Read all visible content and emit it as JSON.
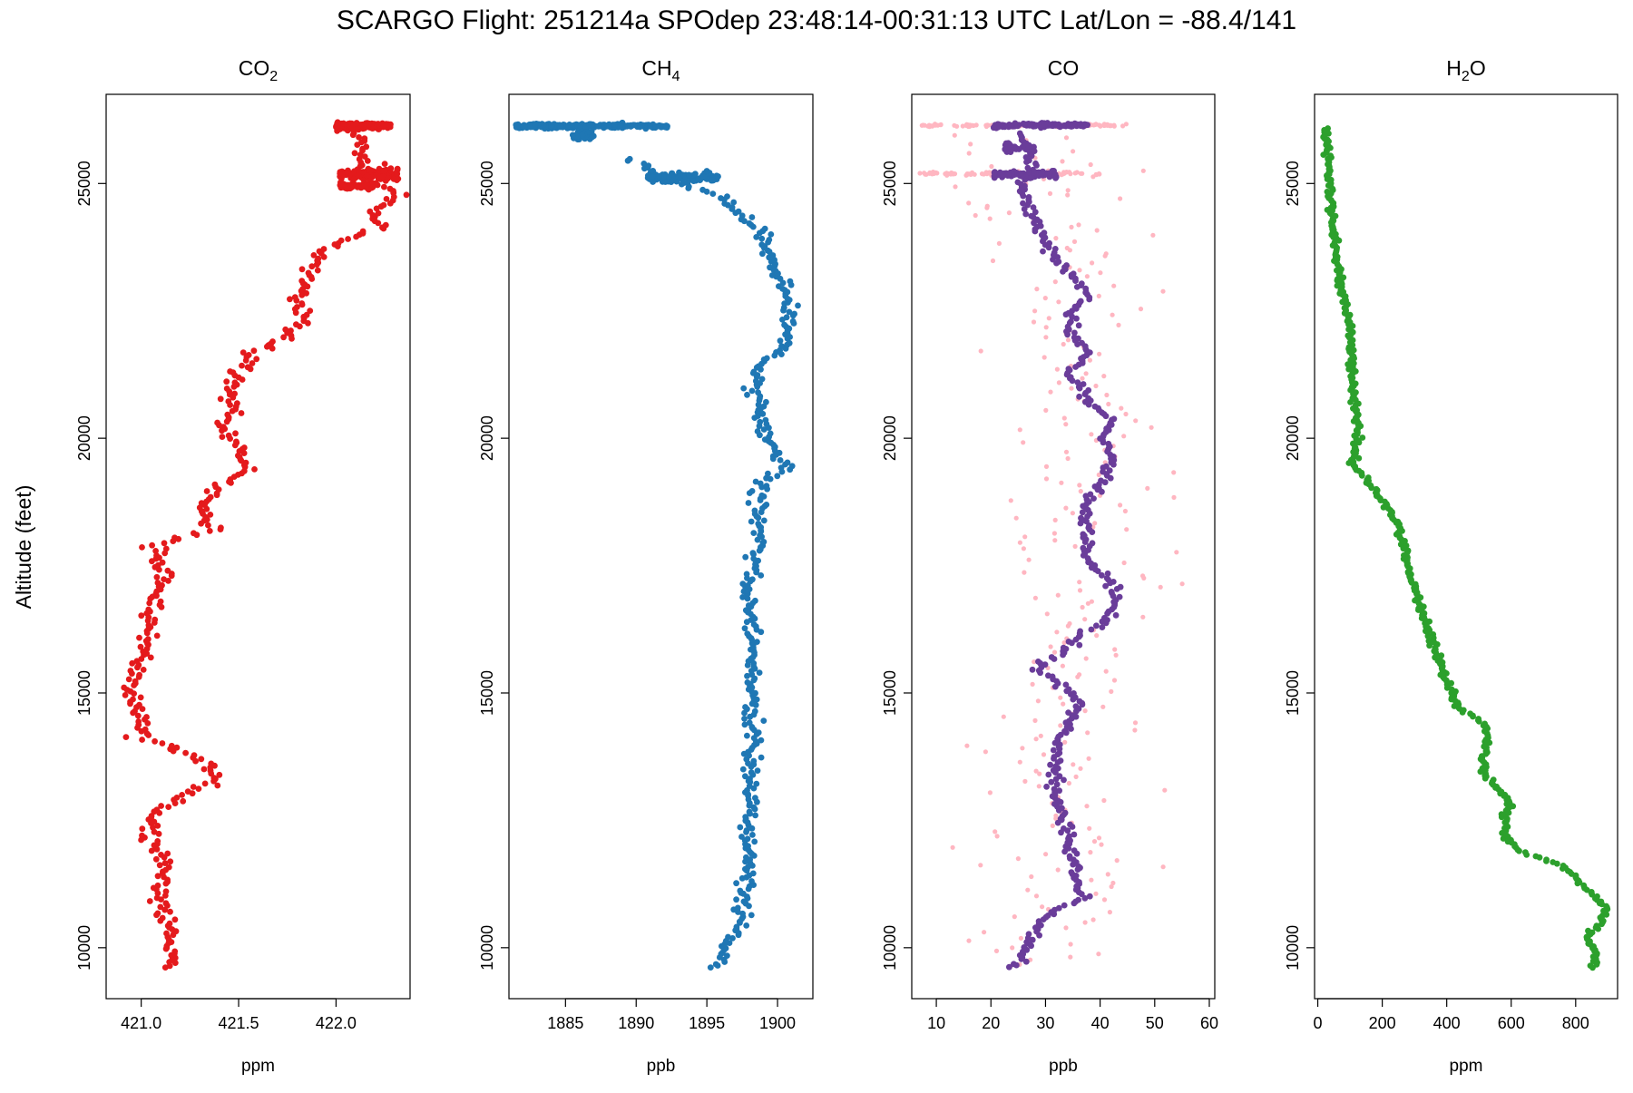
{
  "figure": {
    "title": "SCARGO Flight: 251214a  SPOdep  23:48:14-00:31:13 UTC  Lat/Lon = -88.4/141",
    "ylabel": "Altitude (feet)"
  },
  "chart_data": [
    {
      "type": "scatter",
      "title_main": "CO",
      "title_sub": "2",
      "title_tail": "",
      "xlabel": "ppm",
      "xlim": [
        420.82,
        422.38
      ],
      "ylim": [
        9000,
        26750
      ],
      "xticks": [
        421.0,
        421.5,
        422.0
      ],
      "xtick_labels": [
        "421.0",
        "421.5",
        "422.0"
      ],
      "yticks": [
        10000,
        15000,
        20000,
        25000
      ],
      "ytick_labels": [
        "10000",
        "15000",
        "20000",
        "25000"
      ],
      "color": "#e41a1c",
      "series": [
        {
          "profile": [
            [
              9600,
              421.18
            ],
            [
              10200,
              421.16
            ],
            [
              10600,
              421.12
            ],
            [
              11000,
              421.08
            ],
            [
              11400,
              421.14
            ],
            [
              11800,
              421.1
            ],
            [
              12200,
              421.04
            ],
            [
              12600,
              421.06
            ],
            [
              13000,
              421.22
            ],
            [
              13300,
              421.38
            ],
            [
              13700,
              421.3
            ],
            [
              14100,
              421.02
            ],
            [
              14500,
              421.0
            ],
            [
              14900,
              420.95
            ],
            [
              15400,
              420.97
            ],
            [
              15900,
              421.03
            ],
            [
              16400,
              421.04
            ],
            [
              16900,
              421.06
            ],
            [
              17200,
              421.12
            ],
            [
              17600,
              421.1
            ],
            [
              17900,
              421.05
            ],
            [
              18200,
              421.38
            ],
            [
              18600,
              421.28
            ],
            [
              19000,
              421.38
            ],
            [
              19400,
              421.55
            ],
            [
              19800,
              421.5
            ],
            [
              20200,
              421.43
            ],
            [
              20600,
              421.47
            ],
            [
              21000,
              421.45
            ],
            [
              21400,
              421.52
            ],
            [
              21700,
              421.6
            ],
            [
              22000,
              421.75
            ],
            [
              22300,
              421.82
            ],
            [
              22700,
              421.8
            ],
            [
              23100,
              421.85
            ],
            [
              23500,
              421.88
            ],
            [
              23800,
              421.98
            ],
            [
              24100,
              422.2
            ],
            [
              24400,
              422.18
            ],
            [
              24700,
              422.3
            ],
            [
              25100,
              422.25
            ],
            [
              25500,
              422.1
            ],
            [
              25800,
              422.15
            ],
            [
              26100,
              422.1
            ]
          ],
          "jitter": 0.025,
          "count": 420
        },
        {
          "blobs": [
            {
              "y": 26130,
              "x_from": 422.0,
              "x_to": 422.28,
              "n": 160,
              "yspread": 60
            },
            {
              "y": 25180,
              "x_from": 422.02,
              "x_to": 422.32,
              "n": 130,
              "yspread": 110
            },
            {
              "y": 24950,
              "x_from": 422.02,
              "x_to": 422.2,
              "n": 60,
              "yspread": 60
            }
          ]
        }
      ]
    },
    {
      "type": "scatter",
      "title_main": "CH",
      "title_sub": "4",
      "title_tail": "",
      "xlabel": "ppb",
      "xlim": [
        1881.0,
        1902.5
      ],
      "ylim": [
        9000,
        26750
      ],
      "xticks": [
        1885,
        1890,
        1895,
        1900
      ],
      "xtick_labels": [
        "1885",
        "1890",
        "1895",
        "1900"
      ],
      "yticks": [
        10000,
        15000,
        20000,
        25000
      ],
      "ytick_labels": [
        "10000",
        "15000",
        "20000",
        "25000"
      ],
      "color": "#1f77b4",
      "series": [
        {
          "profile": [
            [
              9600,
              1895.8
            ],
            [
              10000,
              1896.2
            ],
            [
              10400,
              1897.3
            ],
            [
              10800,
              1897.5
            ],
            [
              11200,
              1897.8
            ],
            [
              11600,
              1897.8
            ],
            [
              12000,
              1897.9
            ],
            [
              12600,
              1898.0
            ],
            [
              13300,
              1898.2
            ],
            [
              14000,
              1898.3
            ],
            [
              14800,
              1898.1
            ],
            [
              15500,
              1898.2
            ],
            [
              16300,
              1898.3
            ],
            [
              17000,
              1898.0
            ],
            [
              17600,
              1898.3
            ],
            [
              18200,
              1898.8
            ],
            [
              18700,
              1898.6
            ],
            [
              19100,
              1898.8
            ],
            [
              19400,
              1900.6
            ],
            [
              19800,
              1899.8
            ],
            [
              20200,
              1898.8
            ],
            [
              20800,
              1898.6
            ],
            [
              21400,
              1898.5
            ],
            [
              21800,
              1900.6
            ],
            [
              22300,
              1900.9
            ],
            [
              22800,
              1900.7
            ],
            [
              23200,
              1900.0
            ],
            [
              23500,
              1899.4
            ],
            [
              23900,
              1899.3
            ],
            [
              24200,
              1898.2
            ],
            [
              24500,
              1897.0
            ],
            [
              24800,
              1895.7
            ],
            [
              25000,
              1893.0
            ],
            [
              25200,
              1891.2
            ],
            [
              25500,
              1889.5
            ]
          ],
          "jitter": 0.3,
          "count": 420
        },
        {
          "blobs": [
            {
              "y": 26130,
              "x_from": 1881.5,
              "x_to": 1892.2,
              "n": 280,
              "yspread": 45
            },
            {
              "y": 25950,
              "x_from": 1885.5,
              "x_to": 1887.0,
              "n": 30,
              "yspread": 80
            },
            {
              "y": 25120,
              "x_from": 1890.8,
              "x_to": 1895.8,
              "n": 120,
              "yspread": 90
            }
          ]
        }
      ]
    },
    {
      "type": "scatter",
      "title_main": "CO",
      "title_sub": "",
      "title_tail": "",
      "xlabel": "ppb",
      "xlim": [
        5.5,
        61.0
      ],
      "ylim": [
        9000,
        26750
      ],
      "xticks": [
        10,
        20,
        30,
        40,
        50,
        60
      ],
      "xtick_labels": [
        "10",
        "20",
        "30",
        "40",
        "50",
        "60"
      ],
      "yticks": [
        10000,
        15000,
        20000,
        25000
      ],
      "ytick_labels": [
        "10000",
        "15000",
        "20000",
        "25000"
      ],
      "color": "#6a3d9a",
      "color_secondary": "#ffb6c1",
      "series": [
        {
          "role": "raw",
          "profile": [
            [
              9600,
              24.5
            ],
            [
              10300,
              27.0
            ],
            [
              11000,
              35.0
            ],
            [
              11800,
              34.0
            ],
            [
              12500,
              33.0
            ],
            [
              13300,
              31.5
            ],
            [
              14100,
              33.5
            ],
            [
              14800,
              35.0
            ],
            [
              15500,
              28.0
            ],
            [
              16200,
              37.0
            ],
            [
              16900,
              41.0
            ],
            [
              17500,
              38.0
            ],
            [
              18300,
              36.0
            ],
            [
              19000,
              40.0
            ],
            [
              19800,
              41.0
            ],
            [
              20500,
              40.0
            ],
            [
              21100,
              34.0
            ],
            [
              21700,
              37.0
            ],
            [
              22300,
              35.0
            ],
            [
              23000,
              36.0
            ],
            [
              23700,
              31.0
            ],
            [
              24300,
              28.0
            ],
            [
              24800,
              27.0
            ],
            [
              25500,
              27.0
            ],
            [
              26000,
              24.0
            ]
          ],
          "jitter": 7.5,
          "count": 260
        },
        {
          "role": "raw",
          "blobs": [
            {
              "y": 26140,
              "x_from": 7.0,
              "x_to": 45.0,
              "n": 120,
              "yspread": 25
            },
            {
              "y": 25200,
              "x_from": 7.0,
              "x_to": 40.0,
              "n": 90,
              "yspread": 40
            }
          ]
        },
        {
          "role": "smoothed",
          "profile": [
            [
              9600,
              24.5
            ],
            [
              10000,
              26.5
            ],
            [
              10300,
              28.0
            ],
            [
              10600,
              30.0
            ],
            [
              11000,
              37.0
            ],
            [
              11400,
              35.5
            ],
            [
              11800,
              35.0
            ],
            [
              12200,
              34.5
            ],
            [
              12600,
              33.0
            ],
            [
              13000,
              32.0
            ],
            [
              13500,
              31.5
            ],
            [
              14000,
              32.5
            ],
            [
              14500,
              35.0
            ],
            [
              14800,
              36.0
            ],
            [
              15200,
              32.0
            ],
            [
              15500,
              28.5
            ],
            [
              15800,
              33.0
            ],
            [
              16200,
              37.0
            ],
            [
              16500,
              42.0
            ],
            [
              16900,
              43.0
            ],
            [
              17300,
              41.5
            ],
            [
              17600,
              37.0
            ],
            [
              18000,
              37.5
            ],
            [
              18400,
              37.0
            ],
            [
              18800,
              38.0
            ],
            [
              19200,
              40.5
            ],
            [
              19600,
              42.5
            ],
            [
              20000,
              40.5
            ],
            [
              20300,
              42.0
            ],
            [
              20600,
              39.0
            ],
            [
              21000,
              36.5
            ],
            [
              21300,
              33.5
            ],
            [
              21600,
              38.5
            ],
            [
              22000,
              35.0
            ],
            [
              22400,
              34.0
            ],
            [
              22800,
              38.0
            ],
            [
              23100,
              36.0
            ],
            [
              23400,
              33.0
            ],
            [
              23700,
              31.0
            ],
            [
              24000,
              29.0
            ],
            [
              24300,
              28.0
            ],
            [
              24600,
              26.0
            ],
            [
              24900,
              26.0
            ],
            [
              25300,
              27.0
            ],
            [
              25700,
              27.0
            ],
            [
              26000,
              25.0
            ]
          ],
          "jitter": 0.6,
          "count": 420
        },
        {
          "role": "smoothed",
          "blobs": [
            {
              "y": 26140,
              "x_from": 20.5,
              "x_to": 38.0,
              "n": 110,
              "yspread": 35
            },
            {
              "y": 25180,
              "x_from": 20.5,
              "x_to": 32.0,
              "n": 110,
              "yspread": 60
            },
            {
              "y": 25700,
              "x_from": 22.5,
              "x_to": 28.0,
              "n": 40,
              "yspread": 80
            }
          ]
        }
      ]
    },
    {
      "type": "scatter",
      "title_main": "H",
      "title_sub": "2",
      "title_tail": "O",
      "xlabel": "ppm",
      "xlim": [
        -10,
        930
      ],
      "ylim": [
        9000,
        26750
      ],
      "xticks": [
        0,
        200,
        400,
        600,
        800
      ],
      "xtick_labels": [
        "0",
        "200",
        "400",
        "600",
        "800"
      ],
      "yticks": [
        10000,
        15000,
        20000,
        25000
      ],
      "ytick_labels": [
        "10000",
        "15000",
        "20000",
        "25000"
      ],
      "color": "#2ca02c",
      "series": [
        {
          "profile": [
            [
              9600,
              860
            ],
            [
              9900,
              860
            ],
            [
              10200,
              830
            ],
            [
              10500,
              880
            ],
            [
              10800,
              895
            ],
            [
              11100,
              840
            ],
            [
              11600,
              765
            ],
            [
              11900,
              620
            ],
            [
              12200,
              580
            ],
            [
              12600,
              580
            ],
            [
              12800,
              600
            ],
            [
              13100,
              560
            ],
            [
              13400,
              520
            ],
            [
              13800,
              515
            ],
            [
              14100,
              525
            ],
            [
              14400,
              520
            ],
            [
              14700,
              435
            ],
            [
              15000,
              415
            ],
            [
              15500,
              385
            ],
            [
              16000,
              355
            ],
            [
              16600,
              320
            ],
            [
              17200,
              295
            ],
            [
              17800,
              270
            ],
            [
              18500,
              235
            ],
            [
              19000,
              175
            ],
            [
              19500,
              110
            ],
            [
              19800,
              120
            ],
            [
              20200,
              125
            ],
            [
              20900,
              110
            ],
            [
              21600,
              105
            ],
            [
              22200,
              100
            ],
            [
              22900,
              75
            ],
            [
              23600,
              58
            ],
            [
              24300,
              45
            ],
            [
              25000,
              38
            ],
            [
              25600,
              30
            ],
            [
              26100,
              30
            ]
          ],
          "jitter": 6,
          "count": 520
        }
      ]
    }
  ]
}
